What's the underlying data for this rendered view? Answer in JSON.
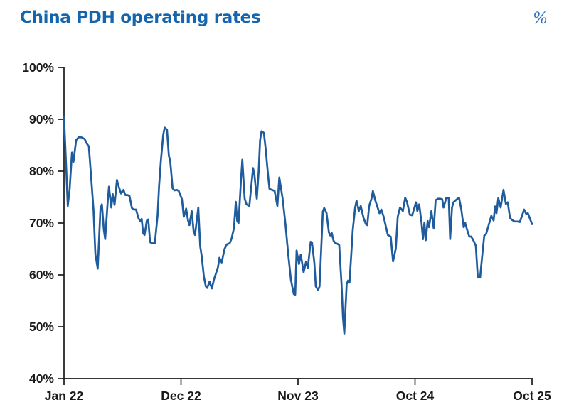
{
  "header": {
    "title": "China PDH operating rates",
    "unit_label": "%",
    "title_color": "#1565AE",
    "unit_color": "#2F6EB5"
  },
  "chart_data": {
    "type": "line",
    "title": "China PDH operating rates",
    "ylabel": "%",
    "xlabel": "",
    "grid": false,
    "legend": "none",
    "series_name": "China PDH operating rate (%)",
    "line_color": "#1F5C9D",
    "axis_color": "#1a1a1a",
    "ylim": [
      40,
      100
    ],
    "y_ticks": [
      {
        "value": 100,
        "label": "100%"
      },
      {
        "value": 90,
        "label": "90%"
      },
      {
        "value": 80,
        "label": "80%"
      },
      {
        "value": 70,
        "label": "70%"
      },
      {
        "value": 60,
        "label": "60%"
      },
      {
        "value": 50,
        "label": "50%"
      },
      {
        "value": 40,
        "label": "40%"
      }
    ],
    "x_ticks": [
      {
        "pos": 0.0,
        "label": "Jan 22"
      },
      {
        "pos": 0.25,
        "label": "Dec 22"
      },
      {
        "pos": 0.5,
        "label": "Nov 23"
      },
      {
        "pos": 0.75,
        "label": "Oct 24"
      },
      {
        "pos": 1.0,
        "label": "Oct 25"
      }
    ],
    "points": [
      [
        0.0,
        90.5
      ],
      [
        0.005,
        80.0
      ],
      [
        0.008,
        73.3
      ],
      [
        0.012,
        76.5
      ],
      [
        0.017,
        83.6
      ],
      [
        0.02,
        81.8
      ],
      [
        0.026,
        86.0
      ],
      [
        0.032,
        86.6
      ],
      [
        0.038,
        86.5
      ],
      [
        0.044,
        86.2
      ],
      [
        0.049,
        85.3
      ],
      [
        0.053,
        84.8
      ],
      [
        0.058,
        78.8
      ],
      [
        0.063,
        72.5
      ],
      [
        0.067,
        64.0
      ],
      [
        0.072,
        61.2
      ],
      [
        0.078,
        72.9
      ],
      [
        0.081,
        73.6
      ],
      [
        0.085,
        68.8
      ],
      [
        0.088,
        66.9
      ],
      [
        0.093,
        73.7
      ],
      [
        0.096,
        77.0
      ],
      [
        0.101,
        73.0
      ],
      [
        0.104,
        75.6
      ],
      [
        0.108,
        73.5
      ],
      [
        0.113,
        78.3
      ],
      [
        0.117,
        77.0
      ],
      [
        0.122,
        75.7
      ],
      [
        0.127,
        76.4
      ],
      [
        0.131,
        75.4
      ],
      [
        0.136,
        75.4
      ],
      [
        0.14,
        75.2
      ],
      [
        0.145,
        72.9
      ],
      [
        0.149,
        72.6
      ],
      [
        0.154,
        72.6
      ],
      [
        0.159,
        71.0
      ],
      [
        0.163,
        70.3
      ],
      [
        0.166,
        70.8
      ],
      [
        0.169,
        68.1
      ],
      [
        0.172,
        67.7
      ],
      [
        0.177,
        70.5
      ],
      [
        0.18,
        70.7
      ],
      [
        0.184,
        66.3
      ],
      [
        0.189,
        66.1
      ],
      [
        0.194,
        66.1
      ],
      [
        0.2,
        71.5
      ],
      [
        0.203,
        77.0
      ],
      [
        0.207,
        82.0
      ],
      [
        0.212,
        87.0
      ],
      [
        0.215,
        88.4
      ],
      [
        0.22,
        88.0
      ],
      [
        0.224,
        83.0
      ],
      [
        0.227,
        81.9
      ],
      [
        0.232,
        76.7
      ],
      [
        0.236,
        76.3
      ],
      [
        0.241,
        76.4
      ],
      [
        0.245,
        76.2
      ],
      [
        0.252,
        74.6
      ],
      [
        0.256,
        71.2
      ],
      [
        0.261,
        72.8
      ],
      [
        0.265,
        70.5
      ],
      [
        0.268,
        69.6
      ],
      [
        0.273,
        72.3
      ],
      [
        0.277,
        68.3
      ],
      [
        0.28,
        67.7
      ],
      [
        0.287,
        73.0
      ],
      [
        0.291,
        65.5
      ],
      [
        0.294,
        63.7
      ],
      [
        0.299,
        59.6
      ],
      [
        0.303,
        57.8
      ],
      [
        0.306,
        57.5
      ],
      [
        0.311,
        58.7
      ],
      [
        0.316,
        57.4
      ],
      [
        0.32,
        59.0
      ],
      [
        0.325,
        60.4
      ],
      [
        0.329,
        61.5
      ],
      [
        0.332,
        63.3
      ],
      [
        0.337,
        62.4
      ],
      [
        0.343,
        65.0
      ],
      [
        0.348,
        65.9
      ],
      [
        0.354,
        66.1
      ],
      [
        0.358,
        67.0
      ],
      [
        0.363,
        69.0
      ],
      [
        0.367,
        74.1
      ],
      [
        0.37,
        70.4
      ],
      [
        0.373,
        70.0
      ],
      [
        0.378,
        78.0
      ],
      [
        0.381,
        82.2
      ],
      [
        0.386,
        74.7
      ],
      [
        0.39,
        73.6
      ],
      [
        0.396,
        73.3
      ],
      [
        0.404,
        80.6
      ],
      [
        0.407,
        79.2
      ],
      [
        0.412,
        74.7
      ],
      [
        0.416,
        80.0
      ],
      [
        0.419,
        86.0
      ],
      [
        0.422,
        87.7
      ],
      [
        0.427,
        87.4
      ],
      [
        0.431,
        84.2
      ],
      [
        0.436,
        79.2
      ],
      [
        0.439,
        76.6
      ],
      [
        0.444,
        76.4
      ],
      [
        0.45,
        76.2
      ],
      [
        0.453,
        74.7
      ],
      [
        0.456,
        73.3
      ],
      [
        0.46,
        78.8
      ],
      [
        0.467,
        74.8
      ],
      [
        0.473,
        70.0
      ],
      [
        0.479,
        64.0
      ],
      [
        0.485,
        59.0
      ],
      [
        0.491,
        56.3
      ],
      [
        0.494,
        56.2
      ],
      [
        0.497,
        64.7
      ],
      [
        0.502,
        62.1
      ],
      [
        0.506,
        63.9
      ],
      [
        0.512,
        60.5
      ],
      [
        0.517,
        62.5
      ],
      [
        0.521,
        61.4
      ],
      [
        0.527,
        66.4
      ],
      [
        0.53,
        66.2
      ],
      [
        0.535,
        62.3
      ],
      [
        0.538,
        57.8
      ],
      [
        0.543,
        57.1
      ],
      [
        0.546,
        57.8
      ],
      [
        0.553,
        72.2
      ],
      [
        0.556,
        72.9
      ],
      [
        0.561,
        71.9
      ],
      [
        0.566,
        68.2
      ],
      [
        0.569,
        67.6
      ],
      [
        0.572,
        68.1
      ],
      [
        0.576,
        66.6
      ],
      [
        0.579,
        66.2
      ],
      [
        0.584,
        66.0
      ],
      [
        0.588,
        65.8
      ],
      [
        0.593,
        58.2
      ],
      [
        0.596,
        51.8
      ],
      [
        0.599,
        48.7
      ],
      [
        0.604,
        58.2
      ],
      [
        0.607,
        58.9
      ],
      [
        0.61,
        58.5
      ],
      [
        0.617,
        68.7
      ],
      [
        0.622,
        73.0
      ],
      [
        0.625,
        74.3
      ],
      [
        0.63,
        72.3
      ],
      [
        0.634,
        73.3
      ],
      [
        0.64,
        71.0
      ],
      [
        0.645,
        69.8
      ],
      [
        0.648,
        69.6
      ],
      [
        0.652,
        73.3
      ],
      [
        0.657,
        74.7
      ],
      [
        0.66,
        76.2
      ],
      [
        0.665,
        74.4
      ],
      [
        0.669,
        73.3
      ],
      [
        0.674,
        71.9
      ],
      [
        0.678,
        72.6
      ],
      [
        0.683,
        71.2
      ],
      [
        0.688,
        69.2
      ],
      [
        0.692,
        67.7
      ],
      [
        0.698,
        67.4
      ],
      [
        0.703,
        62.6
      ],
      [
        0.709,
        65.1
      ],
      [
        0.713,
        71.2
      ],
      [
        0.718,
        73.0
      ],
      [
        0.724,
        72.3
      ],
      [
        0.729,
        74.9
      ],
      [
        0.733,
        74.0
      ],
      [
        0.739,
        71.6
      ],
      [
        0.744,
        71.5
      ],
      [
        0.752,
        74.0
      ],
      [
        0.755,
        72.3
      ],
      [
        0.759,
        73.6
      ],
      [
        0.764,
        70.0
      ],
      [
        0.767,
        66.9
      ],
      [
        0.77,
        70.1
      ],
      [
        0.773,
        66.7
      ],
      [
        0.777,
        70.4
      ],
      [
        0.78,
        69.2
      ],
      [
        0.785,
        72.3
      ],
      [
        0.79,
        69.0
      ],
      [
        0.794,
        74.4
      ],
      [
        0.799,
        74.7
      ],
      [
        0.803,
        74.7
      ],
      [
        0.808,
        74.6
      ],
      [
        0.811,
        73.0
      ],
      [
        0.817,
        74.9
      ],
      [
        0.822,
        74.8
      ],
      [
        0.825,
        66.9
      ],
      [
        0.829,
        73.0
      ],
      [
        0.832,
        74.0
      ],
      [
        0.837,
        74.4
      ],
      [
        0.841,
        74.7
      ],
      [
        0.844,
        74.9
      ],
      [
        0.849,
        72.6
      ],
      [
        0.854,
        69.2
      ],
      [
        0.857,
        70.1
      ],
      [
        0.861,
        68.8
      ],
      [
        0.866,
        67.4
      ],
      [
        0.87,
        67.4
      ],
      [
        0.875,
        66.6
      ],
      [
        0.88,
        65.6
      ],
      [
        0.884,
        59.6
      ],
      [
        0.889,
        59.5
      ],
      [
        0.895,
        65.0
      ],
      [
        0.898,
        67.6
      ],
      [
        0.902,
        67.9
      ],
      [
        0.909,
        70.1
      ],
      [
        0.913,
        71.4
      ],
      [
        0.918,
        70.5
      ],
      [
        0.921,
        73.2
      ],
      [
        0.924,
        71.9
      ],
      [
        0.928,
        74.8
      ],
      [
        0.933,
        73.0
      ],
      [
        0.939,
        76.4
      ],
      [
        0.944,
        73.7
      ],
      [
        0.948,
        74.0
      ],
      [
        0.953,
        71.0
      ],
      [
        0.957,
        70.6
      ],
      [
        0.963,
        70.3
      ],
      [
        0.969,
        70.3
      ],
      [
        0.974,
        70.2
      ],
      [
        0.979,
        71.5
      ],
      [
        0.983,
        72.6
      ],
      [
        0.988,
        71.7
      ],
      [
        0.991,
        71.9
      ],
      [
        0.995,
        71.0
      ],
      [
        1.0,
        69.8
      ]
    ]
  }
}
